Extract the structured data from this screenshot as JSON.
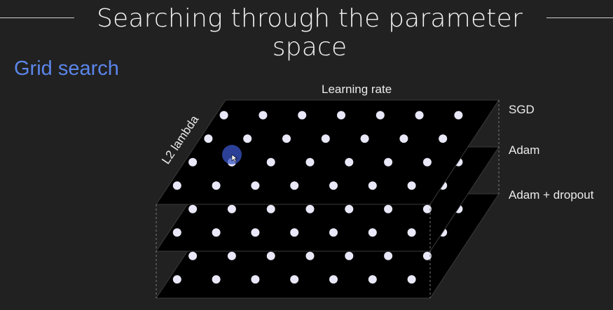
{
  "slide": {
    "title": "Searching through the parameter space",
    "subtitle": "Grid search"
  },
  "axes": {
    "horizontal": "Learning rate",
    "depth": "L2 lambda"
  },
  "layers": [
    {
      "name": "SGD"
    },
    {
      "name": "Adam"
    },
    {
      "name": "Adam + dropout"
    }
  ],
  "grid": {
    "columns": 7,
    "rows": 4
  },
  "colors": {
    "background": "#212121",
    "plane": "#000000",
    "dot": "#e8e8f8",
    "accent": "#5b86ea",
    "highlight": "#3a55c8"
  }
}
